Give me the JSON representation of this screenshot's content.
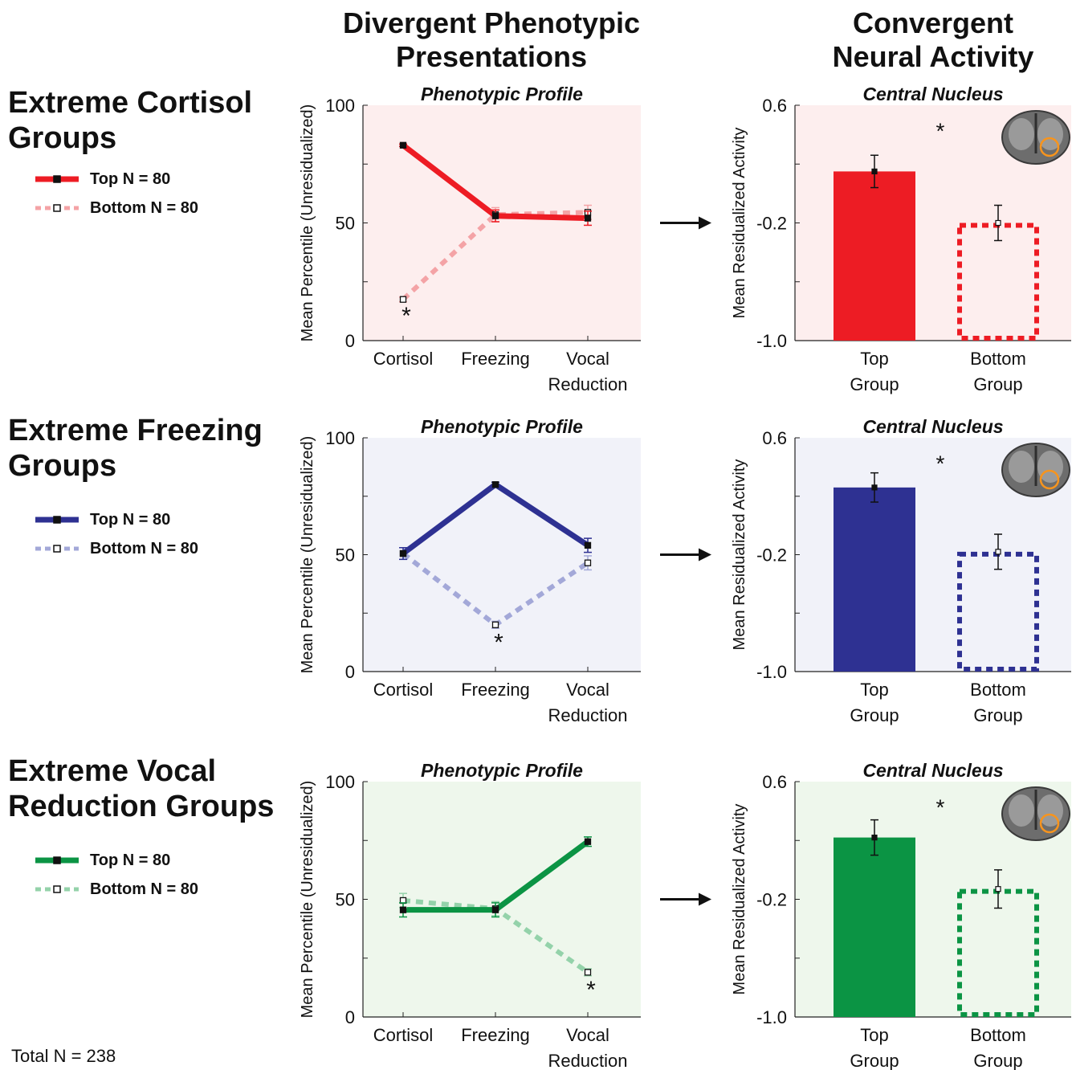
{
  "headers": {
    "left_line1": "Divergent Phenotypic",
    "left_line2": "Presentations",
    "right_line1": "Convergent",
    "right_line2": "Neural Activity"
  },
  "rows": [
    {
      "title_line1": "Extreme Cortisol",
      "title_line2": "Groups",
      "legend_top": "Top N = 80",
      "legend_bottom": "Bottom N = 80",
      "color": "#ed1c24",
      "light_color": "#f4a3a6",
      "bg_color": "#fdeeee"
    },
    {
      "title_line1": "Extreme Freezing",
      "title_line2": "Groups",
      "legend_top": "Top N = 80",
      "legend_bottom": "Bottom N = 80",
      "color": "#2e3192",
      "light_color": "#a3a8d8",
      "bg_color": "#f1f2f9"
    },
    {
      "title_line1": "Extreme Vocal",
      "title_line2": "Reduction Groups",
      "legend_top": "Top N = 80",
      "legend_bottom": "Bottom N = 80",
      "color": "#0b9444",
      "light_color": "#94d2aa",
      "bg_color": "#eef7ec"
    }
  ],
  "total": "Total N = 238",
  "chart_data": [
    {
      "type": "line",
      "title": "Phenotypic Profile",
      "ylabel": "Mean Percentile (Unresidualized)",
      "categories": [
        "Cortisol",
        "Freezing",
        "Vocal Reduction"
      ],
      "ylim": [
        0,
        100
      ],
      "yticks": [
        "0",
        "50",
        "100"
      ],
      "series": [
        {
          "name": "Top N = 80",
          "values": [
            83,
            53,
            52
          ],
          "errors": [
            0.5,
            2.5,
            3
          ]
        },
        {
          "name": "Bottom N = 80",
          "values": [
            17.5,
            53.5,
            54.5
          ],
          "errors": [
            1,
            3,
            3
          ]
        }
      ],
      "annotations": [
        {
          "text": "*",
          "category": "Cortisol",
          "y": 12
        }
      ]
    },
    {
      "type": "bar",
      "title": "Central Nucleus",
      "ylabel": "Mean Residualized Activity",
      "categories": [
        "Top Group",
        "Bottom Group"
      ],
      "ylim": [
        -1.0,
        0.6
      ],
      "yticks": [
        "-1.0",
        "-0.2",
        "0.6"
      ],
      "values": [
        0.15,
        -0.2
      ],
      "errors": [
        0.11,
        0.12
      ],
      "annotations": [
        {
          "text": "*",
          "y": 0.45
        }
      ]
    },
    {
      "type": "line",
      "title": "Phenotypic Profile",
      "ylabel": "Mean Percentile (Unresidualized)",
      "categories": [
        "Cortisol",
        "Freezing",
        "Vocal Reduction"
      ],
      "ylim": [
        0,
        100
      ],
      "yticks": [
        "0",
        "50",
        "100"
      ],
      "series": [
        {
          "name": "Top N = 80",
          "values": [
            50.5,
            80,
            54
          ],
          "errors": [
            2.5,
            1,
            3
          ]
        },
        {
          "name": "Bottom N = 80",
          "values": [
            50.5,
            20,
            46.5
          ],
          "errors": [
            2.5,
            1.5,
            3
          ]
        }
      ],
      "annotations": [
        {
          "text": "*",
          "category": "Freezing",
          "y": 14
        }
      ]
    },
    {
      "type": "bar",
      "title": "Central Nucleus",
      "ylabel": "Mean Residualized Activity",
      "categories": [
        "Top Group",
        "Bottom Group"
      ],
      "ylim": [
        -1.0,
        0.6
      ],
      "yticks": [
        "-1.0",
        "-0.2",
        "0.6"
      ],
      "values": [
        0.26,
        -0.18
      ],
      "errors": [
        0.1,
        0.12
      ],
      "annotations": [
        {
          "text": "*",
          "y": 0.45
        }
      ]
    },
    {
      "type": "line",
      "title": "Phenotypic Profile",
      "ylabel": "Mean Percentile (Unresidualized)",
      "categories": [
        "Cortisol",
        "Freezing",
        "Vocal Reduction"
      ],
      "ylim": [
        0,
        100
      ],
      "yticks": [
        "0",
        "50",
        "100"
      ],
      "series": [
        {
          "name": "Top N = 80",
          "values": [
            45.5,
            45.5,
            74.5
          ],
          "errors": [
            3,
            3,
            2
          ]
        },
        {
          "name": "Bottom N = 80",
          "values": [
            49.5,
            46,
            19
          ],
          "errors": [
            3,
            3,
            1.5
          ]
        }
      ],
      "annotations": [
        {
          "text": "*",
          "category": "Vocal Reduction",
          "y": 13
        }
      ]
    },
    {
      "type": "bar",
      "title": "Central Nucleus",
      "ylabel": "Mean Residualized Activity",
      "categories": [
        "Top Group",
        "Bottom Group"
      ],
      "ylim": [
        -1.0,
        0.6
      ],
      "yticks": [
        "-1.0",
        "-0.2",
        "0.6"
      ],
      "values": [
        0.22,
        -0.13
      ],
      "errors": [
        0.12,
        0.13
      ],
      "annotations": [
        {
          "text": "*",
          "y": 0.45
        }
      ]
    }
  ]
}
